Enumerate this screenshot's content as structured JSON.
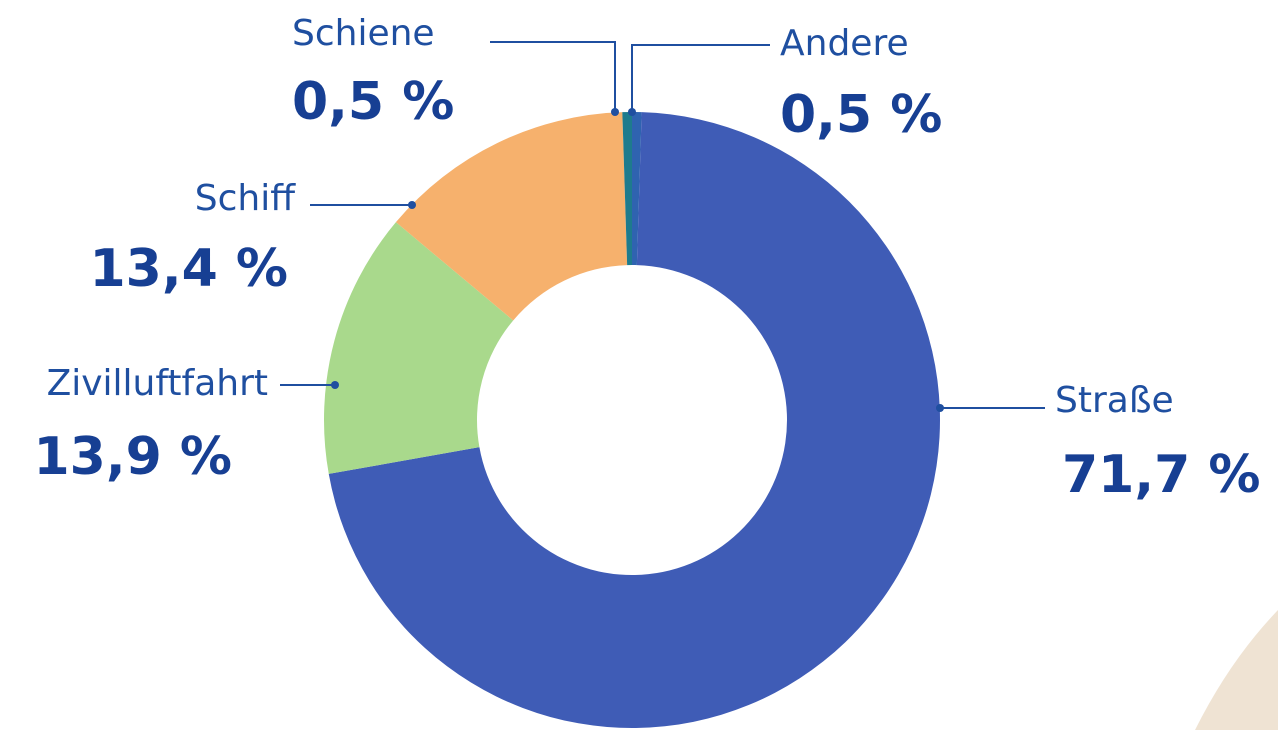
{
  "chart_data": {
    "type": "donut",
    "categories": [
      "Andere",
      "Straße",
      "Zivilluftfahrt",
      "Schiff",
      "Schiene"
    ],
    "values": [
      0.5,
      71.7,
      13.9,
      13.4,
      0.5
    ],
    "value_labels": [
      "0,5 %",
      "71,7 %",
      "13,9 %",
      "13,4 %",
      "0,5 %"
    ],
    "colors": [
      "#2f63b0",
      "#3f5cb6",
      "#a9d98c",
      "#f6b16d",
      "#1e7b8d"
    ]
  }
}
